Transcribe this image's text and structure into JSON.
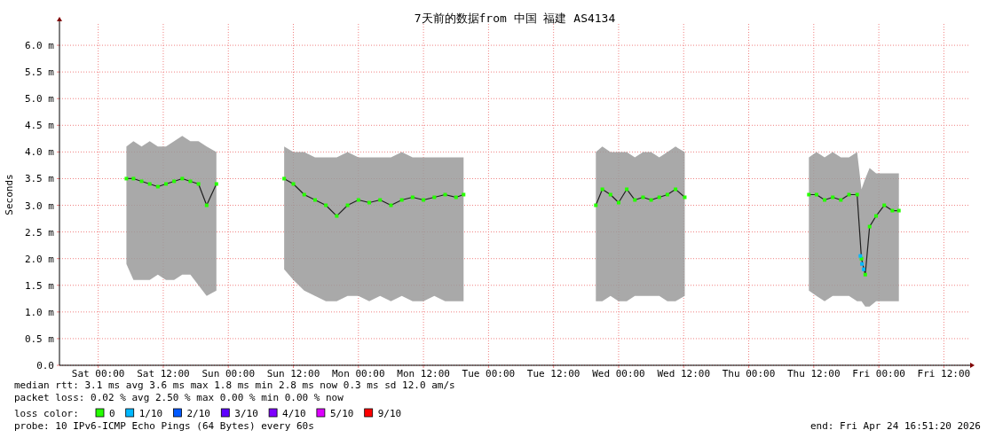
{
  "chart_data": {
    "type": "line",
    "title": "7天前的数据from 中国 福建 AS4134",
    "ylabel": "Seconds",
    "legend_title": "loss color:",
    "xlim": [
      "2026-04-17T16:51",
      "2026-04-24T16:51"
    ],
    "ylim": [
      0,
      6.4
    ],
    "xticks": [
      {
        "value": "2026-04-18T00:00",
        "label": "Sat 00:00"
      },
      {
        "value": "2026-04-18T12:00",
        "label": "Sat 12:00"
      },
      {
        "value": "2026-04-19T00:00",
        "label": "Sun 00:00"
      },
      {
        "value": "2026-04-19T12:00",
        "label": "Sun 12:00"
      },
      {
        "value": "2026-04-20T00:00",
        "label": "Mon 00:00"
      },
      {
        "value": "2026-04-20T12:00",
        "label": "Mon 12:00"
      },
      {
        "value": "2026-04-21T00:00",
        "label": "Tue 00:00"
      },
      {
        "value": "2026-04-21T12:00",
        "label": "Tue 12:00"
      },
      {
        "value": "2026-04-22T00:00",
        "label": "Wed 00:00"
      },
      {
        "value": "2026-04-22T12:00",
        "label": "Wed 12:00"
      },
      {
        "value": "2026-04-23T00:00",
        "label": "Thu 00:00"
      },
      {
        "value": "2026-04-23T12:00",
        "label": "Thu 12:00"
      },
      {
        "value": "2026-04-24T00:00",
        "label": "Fri 00:00"
      },
      {
        "value": "2026-04-24T12:00",
        "label": "Fri 12:00"
      }
    ],
    "yticks": [
      {
        "value": 0,
        "label": "0.0"
      },
      {
        "value": 0.5,
        "label": "0.5 m"
      },
      {
        "value": 1,
        "label": "1.0 m"
      },
      {
        "value": 1.5,
        "label": "1.5 m"
      },
      {
        "value": 2,
        "label": "2.0 m"
      },
      {
        "value": 2.5,
        "label": "2.5 m"
      },
      {
        "value": 3,
        "label": "3.0 m"
      },
      {
        "value": 3.5,
        "label": "3.5 m"
      },
      {
        "value": 4,
        "label": "4.0 m"
      },
      {
        "value": 4.5,
        "label": "4.5 m"
      },
      {
        "value": 5,
        "label": "5.0 m"
      },
      {
        "value": 5.5,
        "label": "5.5 m"
      },
      {
        "value": 6,
        "label": "6.0 m"
      }
    ],
    "grid": true,
    "legend": "bottom",
    "marker": "square",
    "series": [
      {
        "name": "0",
        "color": "#26ff00",
        "x": [
          "2026-04-18T05:12",
          "2026-04-18T06:30",
          "2026-04-18T08:00",
          "2026-04-18T09:30",
          "2026-04-18T11:00",
          "2026-04-18T12:30",
          "2026-04-18T14:00",
          "2026-04-18T15:30",
          "2026-04-18T17:00",
          "2026-04-18T18:30",
          "2026-04-18T20:00",
          "2026-04-18T21:48",
          "2026-04-19T04:00",
          "2026-04-19T10:18",
          "2026-04-19T12:00",
          "2026-04-19T14:00",
          "2026-04-19T16:00",
          "2026-04-19T18:00",
          "2026-04-19T20:00",
          "2026-04-19T22:00",
          "2026-04-20T00:00",
          "2026-04-20T02:00",
          "2026-04-20T04:00",
          "2026-04-20T06:00",
          "2026-04-20T08:00",
          "2026-04-20T10:00",
          "2026-04-20T12:00",
          "2026-04-20T14:00",
          "2026-04-20T16:00",
          "2026-04-20T18:00",
          "2026-04-20T19:24",
          "2026-04-21T08:00",
          "2026-04-21T19:48",
          "2026-04-21T21:00",
          "2026-04-21T22:30",
          "2026-04-22T00:00",
          "2026-04-22T01:30",
          "2026-04-22T03:00",
          "2026-04-22T04:30",
          "2026-04-22T06:00",
          "2026-04-22T07:30",
          "2026-04-22T09:00",
          "2026-04-22T10:30",
          "2026-04-22T12:12",
          "2026-04-23T00:00",
          "2026-04-23T11:06",
          "2026-04-23T12:30",
          "2026-04-23T14:00",
          "2026-04-23T15:30",
          "2026-04-23T17:00",
          "2026-04-23T18:30",
          "2026-04-23T20:00",
          "2026-04-23T20:48",
          "2026-04-23T21:30",
          "2026-04-23T22:18",
          "2026-04-23T23:30",
          "2026-04-24T01:00",
          "2026-04-24T02:30",
          "2026-04-24T03:42"
        ],
        "values": [
          3.5,
          3.5,
          3.45,
          3.4,
          3.35,
          3.4,
          3.45,
          3.5,
          3.45,
          3.4,
          3.0,
          3.4,
          null,
          3.5,
          3.4,
          3.2,
          3.1,
          3.0,
          2.8,
          3.0,
          3.1,
          3.05,
          3.1,
          3.0,
          3.1,
          3.15,
          3.1,
          3.15,
          3.2,
          3.15,
          3.2,
          null,
          3.0,
          3.3,
          3.2,
          3.05,
          3.3,
          3.1,
          3.15,
          3.1,
          3.15,
          3.2,
          3.3,
          3.15,
          null,
          3.2,
          3.2,
          3.1,
          3.15,
          3.1,
          3.2,
          3.2,
          2.0,
          1.7,
          2.6,
          2.8,
          3.0,
          2.9,
          2.9
        ],
        "lower": [
          1.9,
          1.6,
          1.6,
          1.6,
          1.7,
          1.6,
          1.6,
          1.7,
          1.7,
          1.5,
          1.3,
          1.4,
          null,
          1.8,
          1.6,
          1.4,
          1.3,
          1.2,
          1.2,
          1.3,
          1.3,
          1.2,
          1.3,
          1.2,
          1.3,
          1.2,
          1.2,
          1.3,
          1.2,
          1.2,
          1.2,
          null,
          1.2,
          1.2,
          1.3,
          1.2,
          1.2,
          1.3,
          1.3,
          1.3,
          1.3,
          1.2,
          1.2,
          1.3,
          null,
          1.4,
          1.3,
          1.2,
          1.3,
          1.3,
          1.3,
          1.2,
          1.2,
          1.1,
          1.1,
          1.2,
          1.2,
          1.2,
          1.2
        ],
        "upper": [
          4.1,
          4.2,
          4.1,
          4.2,
          4.1,
          4.1,
          4.2,
          4.3,
          4.2,
          4.2,
          4.1,
          4.0,
          null,
          4.1,
          4.0,
          4.0,
          3.9,
          3.9,
          3.9,
          4.0,
          3.9,
          3.9,
          3.9,
          3.9,
          4.0,
          3.9,
          3.9,
          3.9,
          3.9,
          3.9,
          3.9,
          null,
          4.0,
          4.1,
          4.0,
          4.0,
          4.0,
          3.9,
          4.0,
          4.0,
          3.9,
          4.0,
          4.1,
          4.0,
          null,
          3.9,
          4.0,
          3.9,
          4.0,
          3.9,
          3.9,
          4.0,
          3.3,
          3.5,
          3.7,
          3.6,
          3.6,
          3.6,
          3.6
        ]
      },
      {
        "name": "1/10",
        "type": "scatter",
        "color": "#00b8ff",
        "x": [
          "2026-04-23T20:36",
          "2026-04-23T20:54",
          "2026-04-23T21:12"
        ],
        "values": [
          2.05,
          1.9,
          1.8
        ]
      },
      {
        "name": "2/10",
        "type": "scatter",
        "color": "#0059ff"
      },
      {
        "name": "3/10",
        "type": "scatter",
        "color": "#5e00ff"
      },
      {
        "name": "4/10",
        "type": "scatter",
        "color": "#7e00ff"
      },
      {
        "name": "5/10",
        "type": "scatter",
        "color": "#dd00ff"
      },
      {
        "name": "9/10",
        "type": "scatter",
        "color": "#ff0000"
      }
    ],
    "annotations": [
      "median rtt:  3.1 ms avg  3.6 ms max  1.8 ms min  2.8 ms now  0.3 ms sd  12.0   am/s",
      "packet loss: 0.02 % avg  2.50 % max  0.00 % min  0.00 % now",
      "probe:       10 IPv6-ICMP Echo Pings (64 Bytes) every 60s",
      "end: Fri Apr 24 16:51:20 2026"
    ]
  }
}
